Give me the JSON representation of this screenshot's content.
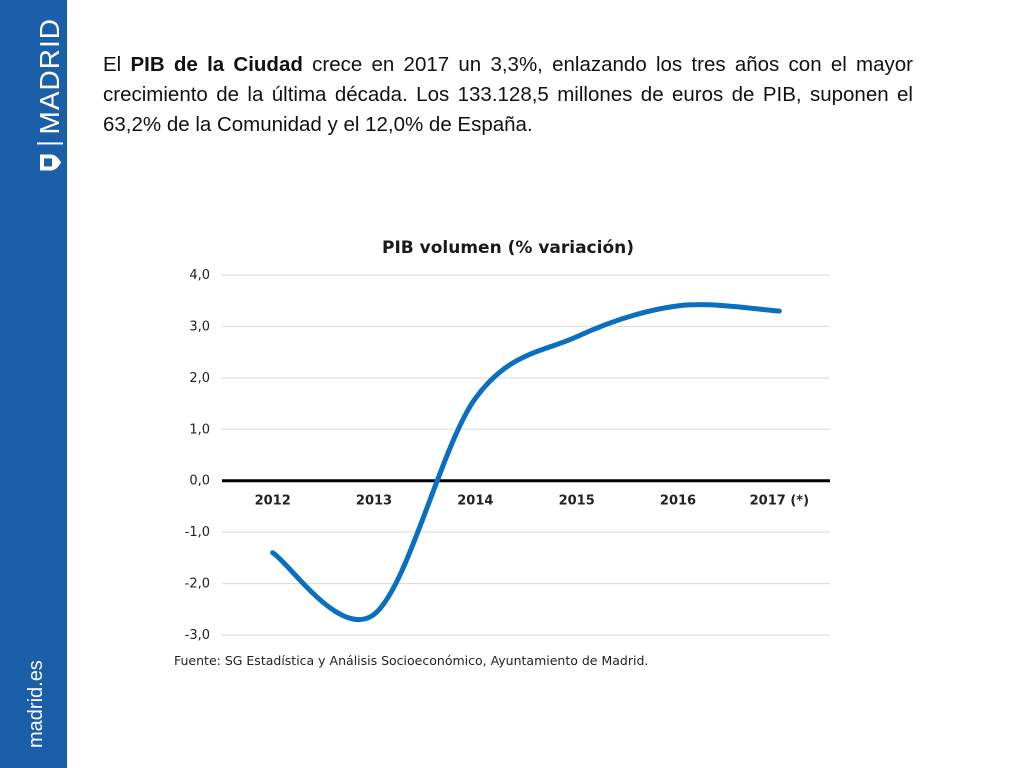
{
  "sidebar": {
    "brand": "MADRID",
    "site": "madrid.es",
    "brand_color": "#1a5fa8",
    "brand_icon": "madrid-shield-icon"
  },
  "intro": {
    "part1": "El ",
    "bold": "PIB de la Ciudad",
    "part2": " crece en 2017 un 3,3%, enlazando los tres años con el mayor crecimiento de la última década. Los 133.128,5 millones de euros de PIB, suponen el 63,2% de la Comunidad y el 12,0% de España."
  },
  "chart_data": {
    "type": "line",
    "title": "PIB volumen (% variación)",
    "categories": [
      "2012",
      "2013",
      "2014",
      "2015",
      "2016",
      "2017 (*)"
    ],
    "series": [
      {
        "name": "PIB volumen",
        "values": [
          -1.4,
          -2.6,
          1.6,
          2.8,
          3.4,
          3.3
        ],
        "color": "#0b6fc0"
      }
    ],
    "y_ticks": [
      "4,0",
      "3,0",
      "2,0",
      "1,0",
      "0,0",
      "-1,0",
      "-2,0",
      "-3,0"
    ],
    "ylim": [
      -3,
      4
    ],
    "grid": true,
    "xlabel": "",
    "ylabel": "",
    "source": "Fuente: SG Estadística y Análisis Socioeconómico, Ayuntamiento de Madrid."
  }
}
